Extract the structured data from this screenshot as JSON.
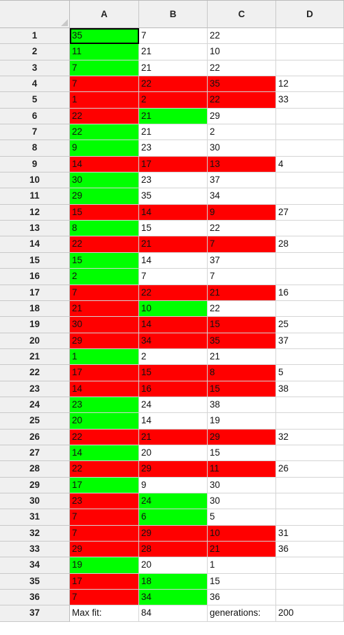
{
  "columns": [
    "A",
    "B",
    "C",
    "D"
  ],
  "colors": {
    "green": "#00ff00",
    "red": "#ff0000",
    "header": "#f0f0f0"
  },
  "selected_cell": "A1",
  "rows": [
    {
      "n": "1",
      "cells": [
        {
          "v": "35",
          "c": "green"
        },
        {
          "v": "7",
          "c": ""
        },
        {
          "v": "22",
          "c": ""
        },
        {
          "v": "",
          "c": ""
        }
      ]
    },
    {
      "n": "2",
      "cells": [
        {
          "v": "11",
          "c": "green"
        },
        {
          "v": "21",
          "c": ""
        },
        {
          "v": "10",
          "c": ""
        },
        {
          "v": "",
          "c": ""
        }
      ]
    },
    {
      "n": "3",
      "cells": [
        {
          "v": "7",
          "c": "green"
        },
        {
          "v": "21",
          "c": ""
        },
        {
          "v": "22",
          "c": ""
        },
        {
          "v": "",
          "c": ""
        }
      ]
    },
    {
      "n": "4",
      "cells": [
        {
          "v": "7",
          "c": "red"
        },
        {
          "v": "22",
          "c": "red"
        },
        {
          "v": "35",
          "c": "red"
        },
        {
          "v": "12",
          "c": ""
        }
      ]
    },
    {
      "n": "5",
      "cells": [
        {
          "v": "1",
          "c": "red"
        },
        {
          "v": "2",
          "c": "red"
        },
        {
          "v": "22",
          "c": "red"
        },
        {
          "v": "33",
          "c": ""
        }
      ]
    },
    {
      "n": "6",
      "cells": [
        {
          "v": "22",
          "c": "red"
        },
        {
          "v": "21",
          "c": "green"
        },
        {
          "v": "29",
          "c": ""
        },
        {
          "v": "",
          "c": ""
        }
      ]
    },
    {
      "n": "7",
      "cells": [
        {
          "v": "22",
          "c": "green"
        },
        {
          "v": "21",
          "c": ""
        },
        {
          "v": "2",
          "c": ""
        },
        {
          "v": "",
          "c": ""
        }
      ]
    },
    {
      "n": "8",
      "cells": [
        {
          "v": "9",
          "c": "green"
        },
        {
          "v": "23",
          "c": ""
        },
        {
          "v": "30",
          "c": ""
        },
        {
          "v": "",
          "c": ""
        }
      ]
    },
    {
      "n": "9",
      "cells": [
        {
          "v": "14",
          "c": "red"
        },
        {
          "v": "17",
          "c": "red"
        },
        {
          "v": "13",
          "c": "red"
        },
        {
          "v": "4",
          "c": ""
        }
      ]
    },
    {
      "n": "10",
      "cells": [
        {
          "v": "30",
          "c": "green"
        },
        {
          "v": "23",
          "c": ""
        },
        {
          "v": "37",
          "c": ""
        },
        {
          "v": "",
          "c": ""
        }
      ]
    },
    {
      "n": "11",
      "cells": [
        {
          "v": "29",
          "c": "green"
        },
        {
          "v": "35",
          "c": ""
        },
        {
          "v": "34",
          "c": ""
        },
        {
          "v": "",
          "c": ""
        }
      ]
    },
    {
      "n": "12",
      "cells": [
        {
          "v": "15",
          "c": "red"
        },
        {
          "v": "14",
          "c": "red"
        },
        {
          "v": "9",
          "c": "red"
        },
        {
          "v": "27",
          "c": ""
        }
      ]
    },
    {
      "n": "13",
      "cells": [
        {
          "v": "8",
          "c": "green"
        },
        {
          "v": "15",
          "c": ""
        },
        {
          "v": "22",
          "c": ""
        },
        {
          "v": "",
          "c": ""
        }
      ]
    },
    {
      "n": "14",
      "cells": [
        {
          "v": "22",
          "c": "red"
        },
        {
          "v": "21",
          "c": "red"
        },
        {
          "v": "7",
          "c": "red"
        },
        {
          "v": "28",
          "c": ""
        }
      ]
    },
    {
      "n": "15",
      "cells": [
        {
          "v": "15",
          "c": "green"
        },
        {
          "v": "14",
          "c": ""
        },
        {
          "v": "37",
          "c": ""
        },
        {
          "v": "",
          "c": ""
        }
      ]
    },
    {
      "n": "16",
      "cells": [
        {
          "v": "2",
          "c": "green"
        },
        {
          "v": "7",
          "c": ""
        },
        {
          "v": "7",
          "c": ""
        },
        {
          "v": "",
          "c": ""
        }
      ]
    },
    {
      "n": "17",
      "cells": [
        {
          "v": "7",
          "c": "red"
        },
        {
          "v": "22",
          "c": "red"
        },
        {
          "v": "21",
          "c": "red"
        },
        {
          "v": "16",
          "c": ""
        }
      ]
    },
    {
      "n": "18",
      "cells": [
        {
          "v": "21",
          "c": "red"
        },
        {
          "v": "10",
          "c": "green"
        },
        {
          "v": "22",
          "c": ""
        },
        {
          "v": "",
          "c": ""
        }
      ]
    },
    {
      "n": "19",
      "cells": [
        {
          "v": "30",
          "c": "red"
        },
        {
          "v": "14",
          "c": "red"
        },
        {
          "v": "15",
          "c": "red"
        },
        {
          "v": "25",
          "c": ""
        }
      ]
    },
    {
      "n": "20",
      "cells": [
        {
          "v": "29",
          "c": "red"
        },
        {
          "v": "34",
          "c": "red"
        },
        {
          "v": "35",
          "c": "red"
        },
        {
          "v": "37",
          "c": ""
        }
      ]
    },
    {
      "n": "21",
      "cells": [
        {
          "v": "1",
          "c": "green"
        },
        {
          "v": "2",
          "c": ""
        },
        {
          "v": "21",
          "c": ""
        },
        {
          "v": "",
          "c": ""
        }
      ]
    },
    {
      "n": "22",
      "cells": [
        {
          "v": "17",
          "c": "red"
        },
        {
          "v": "15",
          "c": "red"
        },
        {
          "v": "8",
          "c": "red"
        },
        {
          "v": "5",
          "c": ""
        }
      ]
    },
    {
      "n": "23",
      "cells": [
        {
          "v": "14",
          "c": "red"
        },
        {
          "v": "16",
          "c": "red"
        },
        {
          "v": "15",
          "c": "red"
        },
        {
          "v": "38",
          "c": ""
        }
      ]
    },
    {
      "n": "24",
      "cells": [
        {
          "v": "23",
          "c": "green"
        },
        {
          "v": "24",
          "c": ""
        },
        {
          "v": "38",
          "c": ""
        },
        {
          "v": "",
          "c": ""
        }
      ]
    },
    {
      "n": "25",
      "cells": [
        {
          "v": "20",
          "c": "green"
        },
        {
          "v": "14",
          "c": ""
        },
        {
          "v": "19",
          "c": ""
        },
        {
          "v": "",
          "c": ""
        }
      ]
    },
    {
      "n": "26",
      "cells": [
        {
          "v": "22",
          "c": "red"
        },
        {
          "v": "21",
          "c": "red"
        },
        {
          "v": "29",
          "c": "red"
        },
        {
          "v": "32",
          "c": ""
        }
      ]
    },
    {
      "n": "27",
      "cells": [
        {
          "v": "14",
          "c": "green"
        },
        {
          "v": "20",
          "c": ""
        },
        {
          "v": "15",
          "c": ""
        },
        {
          "v": "",
          "c": ""
        }
      ]
    },
    {
      "n": "28",
      "cells": [
        {
          "v": "22",
          "c": "red"
        },
        {
          "v": "29",
          "c": "red"
        },
        {
          "v": "11",
          "c": "red"
        },
        {
          "v": "26",
          "c": ""
        }
      ]
    },
    {
      "n": "29",
      "cells": [
        {
          "v": "17",
          "c": "green"
        },
        {
          "v": "9",
          "c": ""
        },
        {
          "v": "30",
          "c": ""
        },
        {
          "v": "",
          "c": ""
        }
      ]
    },
    {
      "n": "30",
      "cells": [
        {
          "v": "23",
          "c": "red"
        },
        {
          "v": "24",
          "c": "green"
        },
        {
          "v": "30",
          "c": ""
        },
        {
          "v": "",
          "c": ""
        }
      ]
    },
    {
      "n": "31",
      "cells": [
        {
          "v": "7",
          "c": "red"
        },
        {
          "v": "6",
          "c": "green"
        },
        {
          "v": "5",
          "c": ""
        },
        {
          "v": "",
          "c": ""
        }
      ]
    },
    {
      "n": "32",
      "cells": [
        {
          "v": "7",
          "c": "red"
        },
        {
          "v": "29",
          "c": "red"
        },
        {
          "v": "10",
          "c": "red"
        },
        {
          "v": "31",
          "c": ""
        }
      ]
    },
    {
      "n": "33",
      "cells": [
        {
          "v": "29",
          "c": "red"
        },
        {
          "v": "28",
          "c": "red"
        },
        {
          "v": "21",
          "c": "red"
        },
        {
          "v": "36",
          "c": ""
        }
      ]
    },
    {
      "n": "34",
      "cells": [
        {
          "v": "19",
          "c": "green"
        },
        {
          "v": "20",
          "c": ""
        },
        {
          "v": "1",
          "c": ""
        },
        {
          "v": "",
          "c": ""
        }
      ]
    },
    {
      "n": "35",
      "cells": [
        {
          "v": "17",
          "c": "red"
        },
        {
          "v": "18",
          "c": "green"
        },
        {
          "v": "15",
          "c": ""
        },
        {
          "v": "",
          "c": ""
        }
      ]
    },
    {
      "n": "36",
      "cells": [
        {
          "v": "7",
          "c": "red"
        },
        {
          "v": "34",
          "c": "green"
        },
        {
          "v": "36",
          "c": ""
        },
        {
          "v": "",
          "c": ""
        }
      ]
    },
    {
      "n": "37",
      "cells": [
        {
          "v": "Max fit:",
          "c": ""
        },
        {
          "v": "84",
          "c": ""
        },
        {
          "v": "generations:",
          "c": ""
        },
        {
          "v": "200",
          "c": ""
        }
      ]
    }
  ]
}
